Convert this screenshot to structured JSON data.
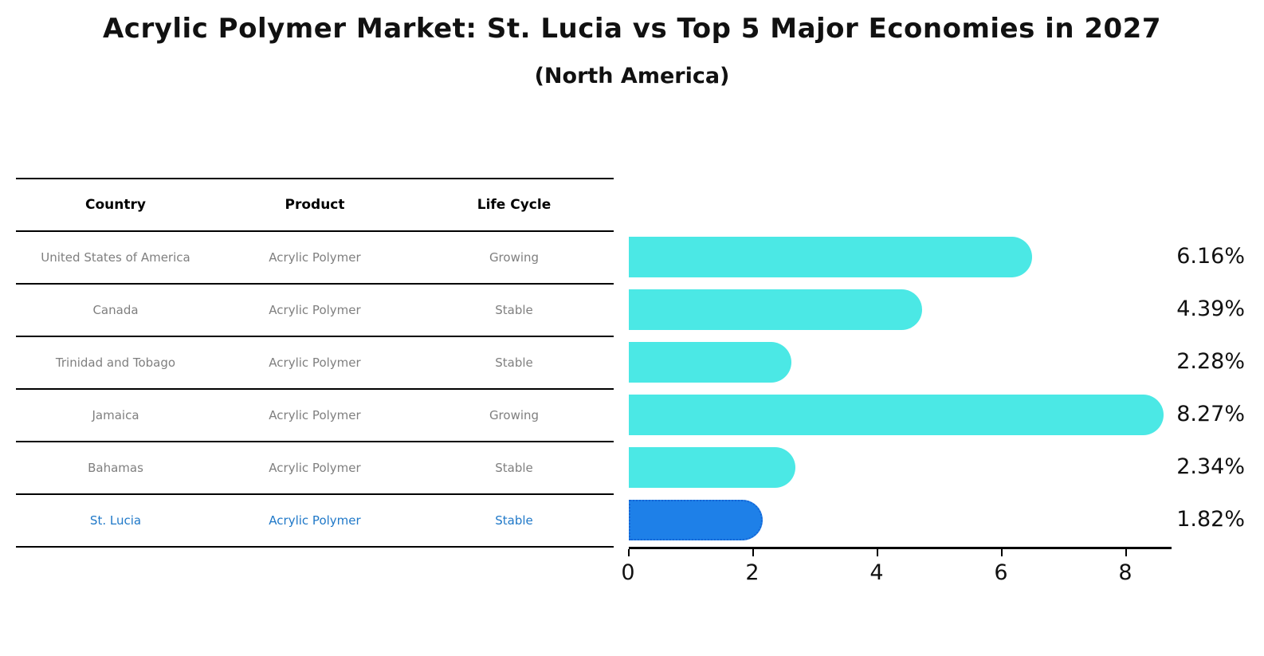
{
  "title": "Acrylic Polymer Market: St. Lucia vs Top 5 Major Economies in 2027",
  "subtitle": "(North America)",
  "table": {
    "headers": [
      "Country",
      "Product",
      "Life Cycle"
    ],
    "rows": [
      {
        "country": "United States of America",
        "product": "Acrylic Polymer",
        "life_cycle": "Growing",
        "highlighted": false
      },
      {
        "country": "Canada",
        "product": "Acrylic Polymer",
        "life_cycle": "Stable",
        "highlighted": false
      },
      {
        "country": "Trinidad and Tobago",
        "product": "Acrylic Polymer",
        "life_cycle": "Stable",
        "highlighted": false
      },
      {
        "country": "Jamaica",
        "product": "Acrylic Polymer",
        "life_cycle": "Growing",
        "highlighted": false
      },
      {
        "country": "Bahamas",
        "product": "Acrylic Polymer",
        "life_cycle": "Stable",
        "highlighted": false
      },
      {
        "country": "St. Lucia",
        "product": "Acrylic Polymer",
        "life_cycle": "Stable",
        "highlighted": true
      }
    ]
  },
  "chart_data": {
    "type": "bar",
    "orientation": "horizontal",
    "title": "Acrylic Polymer Market: St. Lucia vs Top 5 Major Economies in 2027 (North America)",
    "categories": [
      "United States of America",
      "Canada",
      "Trinidad and Tobago",
      "Jamaica",
      "Bahamas",
      "St. Lucia"
    ],
    "values": [
      6.16,
      4.39,
      2.28,
      8.27,
      2.34,
      1.82
    ],
    "value_labels": [
      "6.16%",
      "4.39%",
      "2.28%",
      "8.27%",
      "2.34%",
      "1.82%"
    ],
    "x_ticks": [
      0,
      2,
      4,
      6,
      8
    ],
    "xlim": [
      0,
      8.7
    ],
    "grid": false,
    "legend": false,
    "highlight_index": 5,
    "bar_color": "#4be8e5",
    "highlight_color": "#1e80e8",
    "highlight_border_color": "#1465d6"
  }
}
